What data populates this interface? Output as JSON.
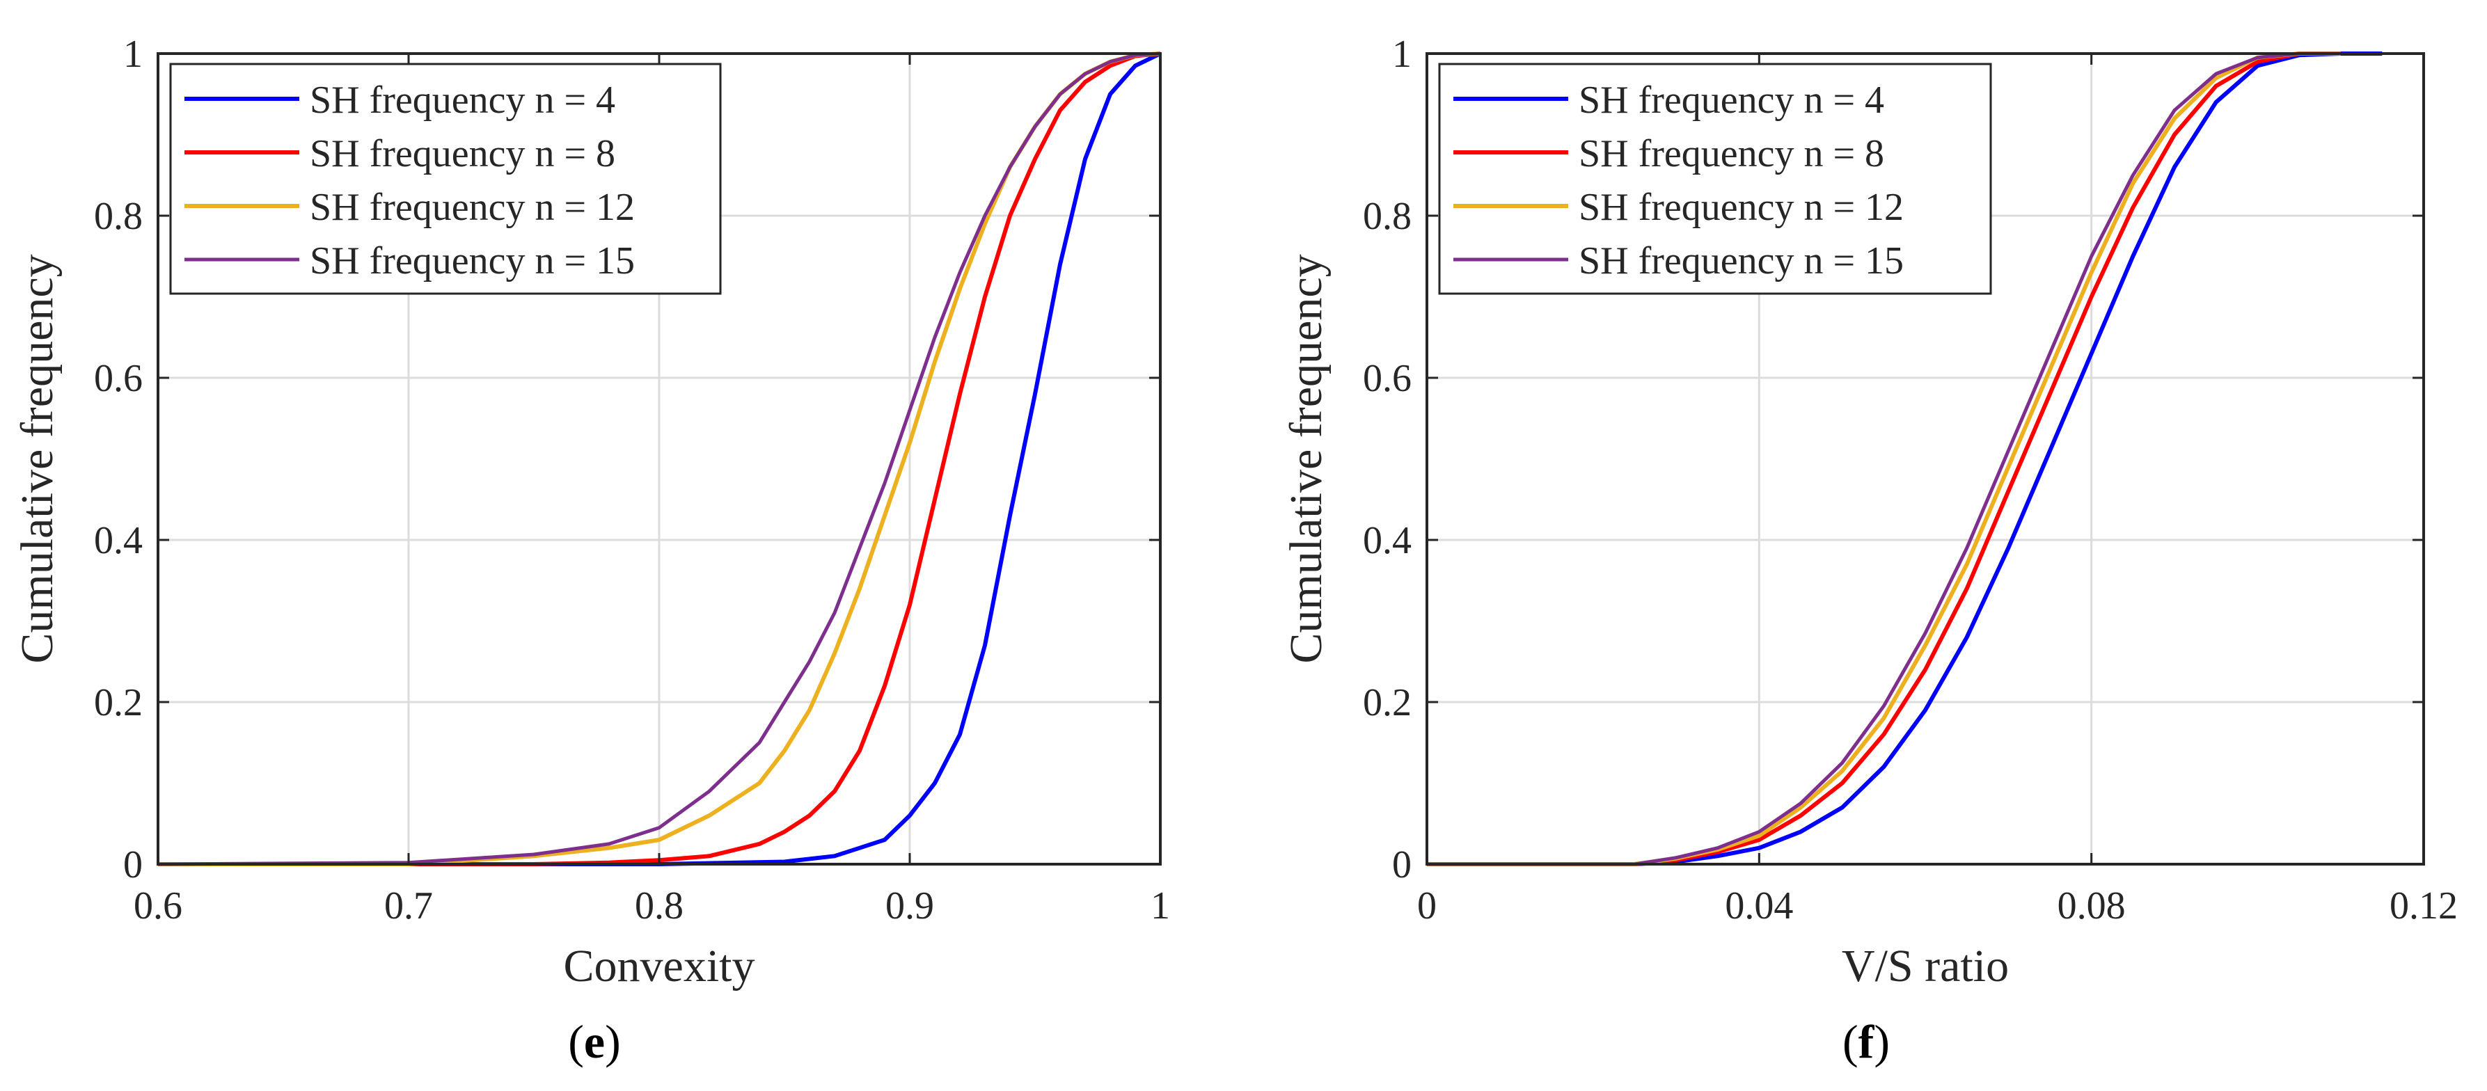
{
  "chart_data": [
    {
      "type": "line",
      "panel": "e",
      "xlabel": "Convexity",
      "ylabel": "Cumulative frequency",
      "xlim": [
        0.6,
        1.0
      ],
      "ylim": [
        0,
        1
      ],
      "xticks": [
        0.6,
        0.7,
        0.8,
        0.9,
        1.0
      ],
      "xtick_labels": [
        "0.6",
        "0.7",
        "0.8",
        "0.9",
        "1"
      ],
      "yticks": [
        0,
        0.2,
        0.4,
        0.6,
        0.8,
        1.0
      ],
      "ytick_labels": [
        "0",
        "0.2",
        "0.4",
        "0.6",
        "0.8",
        "1"
      ],
      "grid": true,
      "legend_position": "top-left",
      "series": [
        {
          "name": "SH frequency n = 4",
          "color": "#0000ff",
          "x": [
            0.6,
            0.8,
            0.85,
            0.87,
            0.88,
            0.89,
            0.9,
            0.91,
            0.92,
            0.93,
            0.94,
            0.95,
            0.96,
            0.97,
            0.98,
            0.99,
            1.0
          ],
          "y": [
            0.0,
            0.0,
            0.003,
            0.01,
            0.02,
            0.03,
            0.06,
            0.1,
            0.16,
            0.27,
            0.43,
            0.58,
            0.74,
            0.87,
            0.95,
            0.985,
            1.0
          ]
        },
        {
          "name": "SH frequency n = 8",
          "color": "#ff0000",
          "x": [
            0.6,
            0.75,
            0.78,
            0.8,
            0.82,
            0.84,
            0.85,
            0.86,
            0.87,
            0.88,
            0.89,
            0.9,
            0.91,
            0.92,
            0.93,
            0.94,
            0.95,
            0.96,
            0.97,
            0.98,
            0.99,
            1.0
          ],
          "y": [
            0.0,
            0.0,
            0.002,
            0.005,
            0.01,
            0.025,
            0.04,
            0.06,
            0.09,
            0.14,
            0.22,
            0.32,
            0.45,
            0.58,
            0.7,
            0.8,
            0.87,
            0.93,
            0.965,
            0.985,
            0.997,
            1.0
          ]
        },
        {
          "name": "SH frequency n = 12",
          "color": "#edb120",
          "x": [
            0.6,
            0.7,
            0.75,
            0.78,
            0.8,
            0.82,
            0.84,
            0.85,
            0.86,
            0.87,
            0.88,
            0.89,
            0.9,
            0.91,
            0.92,
            0.93,
            0.94,
            0.95,
            0.96,
            0.97,
            0.98,
            0.99,
            1.0
          ],
          "y": [
            0.0,
            0.0,
            0.01,
            0.02,
            0.03,
            0.06,
            0.1,
            0.14,
            0.19,
            0.26,
            0.34,
            0.43,
            0.52,
            0.62,
            0.71,
            0.79,
            0.86,
            0.91,
            0.95,
            0.975,
            0.99,
            0.998,
            1.0
          ]
        },
        {
          "name": "SH frequency n = 15",
          "color": "#7e2f8e",
          "x": [
            0.6,
            0.7,
            0.75,
            0.78,
            0.8,
            0.82,
            0.84,
            0.85,
            0.86,
            0.87,
            0.88,
            0.89,
            0.9,
            0.91,
            0.92,
            0.93,
            0.94,
            0.95,
            0.96,
            0.97,
            0.98,
            0.99,
            1.0
          ],
          "y": [
            0.0,
            0.002,
            0.012,
            0.025,
            0.045,
            0.09,
            0.15,
            0.2,
            0.25,
            0.31,
            0.39,
            0.47,
            0.56,
            0.65,
            0.73,
            0.8,
            0.86,
            0.91,
            0.95,
            0.975,
            0.99,
            0.998,
            1.0
          ]
        }
      ]
    },
    {
      "type": "line",
      "panel": "f",
      "xlabel": "V/S ratio",
      "ylabel": "Cumulative frequency",
      "xlim": [
        0,
        0.12
      ],
      "ylim": [
        0,
        1
      ],
      "xticks": [
        0,
        0.04,
        0.08,
        0.12
      ],
      "xtick_labels": [
        "0",
        "0.04",
        "0.08",
        "0.12"
      ],
      "yticks": [
        0,
        0.2,
        0.4,
        0.6,
        0.8,
        1.0
      ],
      "ytick_labels": [
        "0",
        "0.2",
        "0.4",
        "0.6",
        "0.8",
        "1"
      ],
      "grid": true,
      "legend_position": "top-left",
      "series": [
        {
          "name": "SH frequency n = 4",
          "color": "#0000ff",
          "x": [
            0,
            0.025,
            0.03,
            0.035,
            0.04,
            0.045,
            0.05,
            0.055,
            0.06,
            0.065,
            0.07,
            0.075,
            0.08,
            0.085,
            0.09,
            0.095,
            0.1,
            0.105,
            0.11,
            0.115
          ],
          "y": [
            0.0,
            0.0,
            0.003,
            0.01,
            0.02,
            0.04,
            0.07,
            0.12,
            0.19,
            0.28,
            0.39,
            0.51,
            0.63,
            0.75,
            0.86,
            0.94,
            0.985,
            0.998,
            1.0,
            1.0
          ]
        },
        {
          "name": "SH frequency n = 8",
          "color": "#ff0000",
          "x": [
            0,
            0.025,
            0.03,
            0.035,
            0.04,
            0.045,
            0.05,
            0.055,
            0.06,
            0.065,
            0.07,
            0.075,
            0.08,
            0.085,
            0.09,
            0.095,
            0.1,
            0.105,
            0.11
          ],
          "y": [
            0.0,
            0.0,
            0.005,
            0.015,
            0.03,
            0.06,
            0.1,
            0.16,
            0.24,
            0.34,
            0.46,
            0.58,
            0.7,
            0.81,
            0.9,
            0.96,
            0.99,
            1.0,
            1.0
          ]
        },
        {
          "name": "SH frequency n = 12",
          "color": "#edb120",
          "x": [
            0,
            0.025,
            0.03,
            0.035,
            0.04,
            0.045,
            0.05,
            0.055,
            0.06,
            0.065,
            0.07,
            0.075,
            0.08,
            0.085,
            0.09,
            0.095,
            0.1,
            0.105,
            0.11
          ],
          "y": [
            0.0,
            0.0,
            0.007,
            0.018,
            0.035,
            0.07,
            0.115,
            0.18,
            0.27,
            0.37,
            0.49,
            0.61,
            0.73,
            0.84,
            0.92,
            0.97,
            0.995,
            1.0,
            1.0
          ]
        },
        {
          "name": "SH frequency n = 15",
          "color": "#7e2f8e",
          "x": [
            0,
            0.025,
            0.03,
            0.035,
            0.04,
            0.045,
            0.05,
            0.055,
            0.06,
            0.065,
            0.07,
            0.075,
            0.08,
            0.085,
            0.09,
            0.095,
            0.1,
            0.105,
            0.11
          ],
          "y": [
            0.0,
            0.0,
            0.008,
            0.02,
            0.04,
            0.075,
            0.125,
            0.195,
            0.285,
            0.39,
            0.51,
            0.63,
            0.75,
            0.85,
            0.93,
            0.975,
            0.995,
            1.0,
            1.0
          ]
        }
      ]
    }
  ],
  "panel_labels": {
    "e": "e",
    "f": "f"
  }
}
